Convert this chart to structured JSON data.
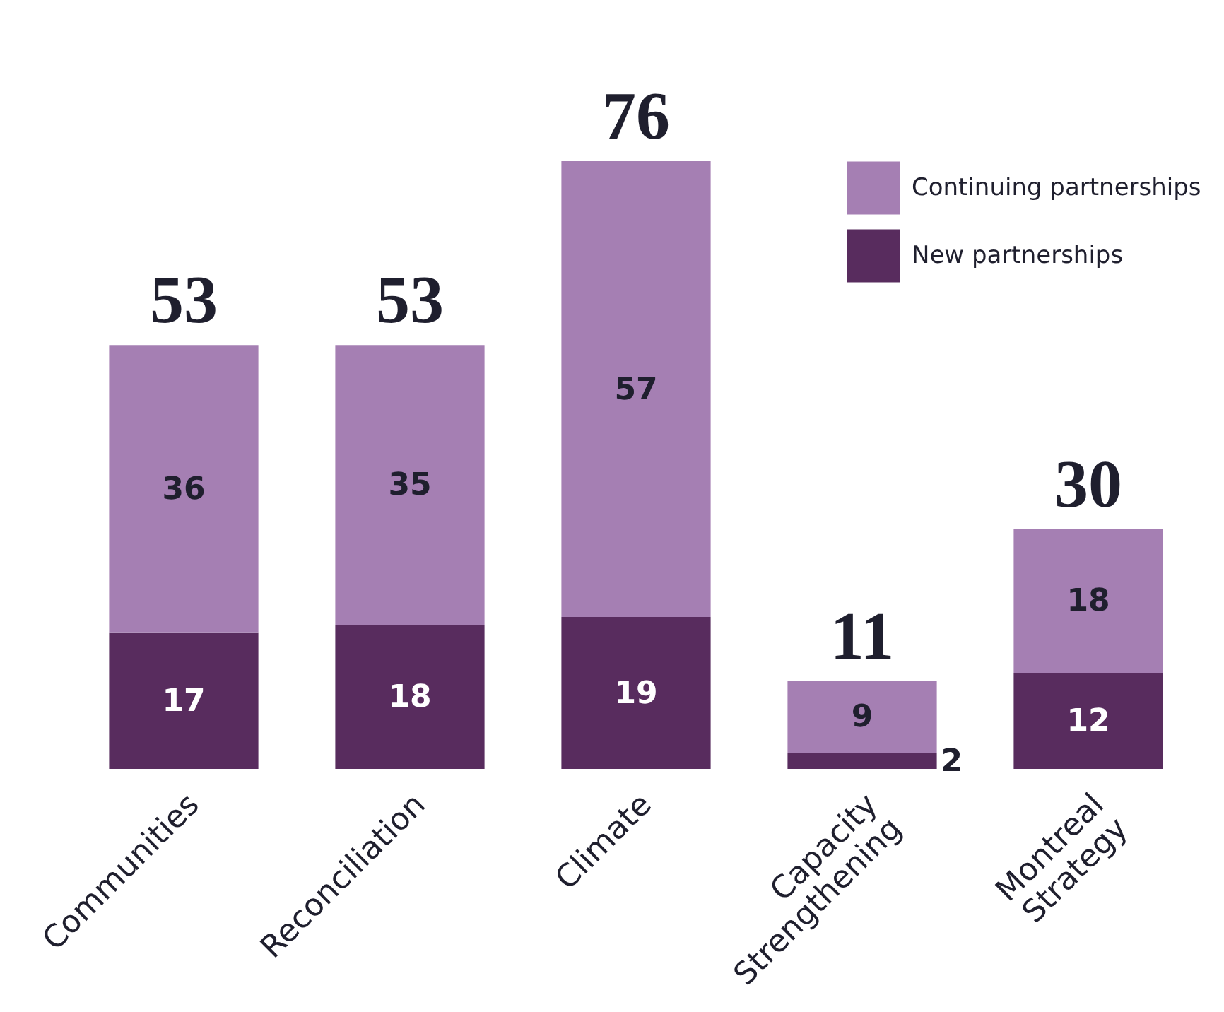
{
  "chart_data": {
    "type": "bar",
    "stacked": true,
    "data_labels": true,
    "legend": "top right",
    "grid": false,
    "categories": [
      "Communities",
      "Reconciliation",
      "Climate",
      "Capacity Strengthening",
      "Montreal Strategy"
    ],
    "series": [
      {
        "name": "New partnerships",
        "color": "#582c5e",
        "values": [
          17,
          18,
          19,
          2,
          12
        ]
      },
      {
        "name": "Continuing partnerships",
        "color": "#a57fb3",
        "values": [
          36,
          35,
          57,
          9,
          18
        ]
      }
    ],
    "totals": [
      "53",
      "53",
      "76",
      "11",
      "30"
    ]
  }
}
